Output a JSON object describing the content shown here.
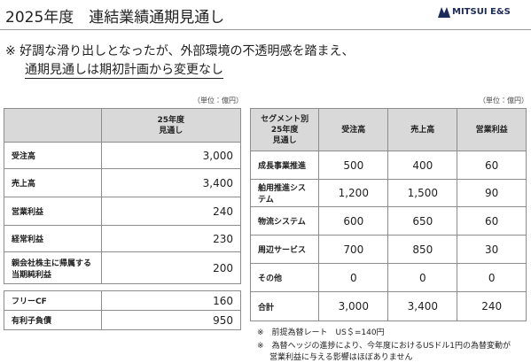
{
  "header": {
    "title": "2025年度　連結業績通期見通し",
    "logo": "MITSUI E&S"
  },
  "summary": [
    "※ 好調な滑り出しとなったが、外部環境の不透明感を踏まえ、",
    "通期見通しは期初計画から変更なし"
  ],
  "left_table": {
    "unit": "（単位：億円）",
    "header": [
      "",
      "25年度\n見通し"
    ],
    "rows": [
      [
        "受注高",
        "3,000"
      ],
      [
        "売上高",
        "3,400"
      ],
      [
        "営業利益",
        "240"
      ],
      [
        "経常利益",
        "230"
      ],
      [
        "親会社株主に帰属する\n当期純利益",
        "200"
      ]
    ],
    "extra_rows": [
      [
        "フリーCF",
        "160"
      ],
      [
        "有利子負債",
        "950"
      ]
    ]
  },
  "right_table": {
    "unit": "（単位：億円）",
    "header": [
      "セグメント別\n25年度\n見通し",
      "受注高",
      "売上高",
      "営業利益"
    ],
    "rows": [
      [
        "成長事業推進",
        "500",
        "400",
        "60"
      ],
      [
        "舶用推進システム",
        "1,200",
        "1,500",
        "90"
      ],
      [
        "物流システム",
        "600",
        "650",
        "60"
      ],
      [
        "周辺サービス",
        "700",
        "850",
        "30"
      ],
      [
        "その他",
        "0",
        "0",
        "0"
      ],
      [
        "合計",
        "3,000",
        "3,400",
        "240"
      ]
    ]
  },
  "notes": [
    "※　前提為替レート　US＄=140円",
    "※　為替ヘッジの進捗により、今年度におけるUSドル1円の為替変動が",
    "営業利益に与える影響はほぼありません"
  ]
}
